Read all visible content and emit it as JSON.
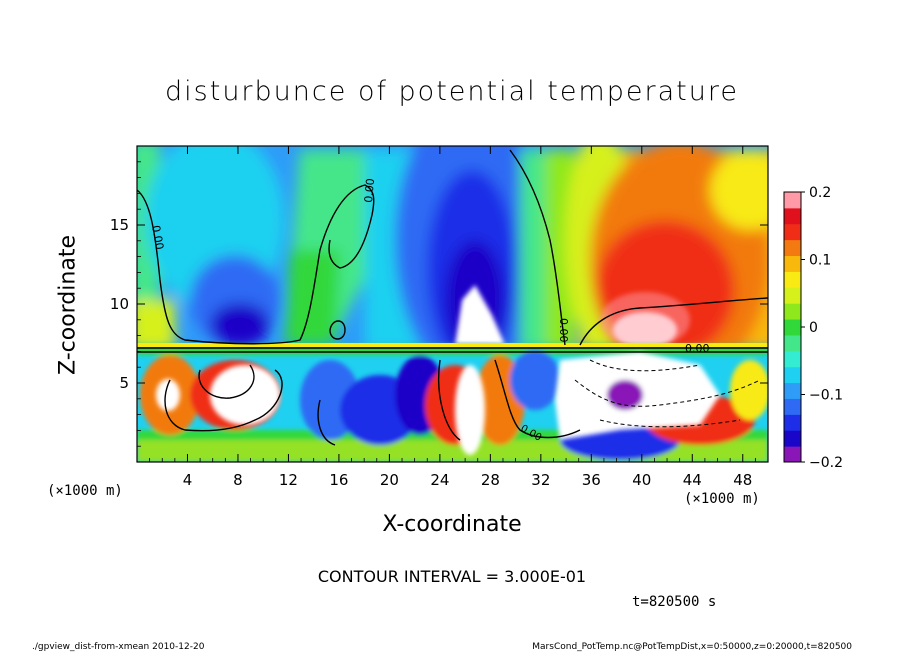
{
  "chart_data": {
    "type": "heatmap",
    "title": "disturbunce of potential temperature",
    "xlabel": "X-coordinate",
    "ylabel": "Z-coordinate",
    "x_unit": "(×1000 m)",
    "y_unit": "(×1000 m)",
    "xlim": [
      0,
      50
    ],
    "ylim": [
      0,
      20
    ],
    "x_ticks": [
      4,
      8,
      12,
      16,
      20,
      24,
      28,
      32,
      36,
      40,
      44,
      48
    ],
    "y_ticks": [
      5,
      10,
      15
    ],
    "colorbar": {
      "range": [
        -0.2,
        0.2
      ],
      "ticks": [
        0.2,
        0.1,
        0,
        -0.1,
        -0.2
      ],
      "tick_labels": [
        "0.2",
        "0.1",
        "0",
        "−0.1",
        "−0.2"
      ],
      "colors": [
        "#8a16b8",
        "#1a06c8",
        "#1e2ee8",
        "#2f6af4",
        "#2f9cf8",
        "#1fd0f0",
        "#33ecd2",
        "#44e68a",
        "#30d83a",
        "#8ee81c",
        "#d6f01c",
        "#f8ea12",
        "#f8b80c",
        "#f27a10",
        "#f02e18",
        "#e0101c",
        "#ff9aa6"
      ]
    },
    "contour_labels": [
      "0.00",
      "0.00",
      "0.00",
      "0.00",
      "0.00"
    ],
    "contour_interval": "CONTOUR INTERVAL = 3.000E-01",
    "time": "t=820500 s"
  },
  "footer": {
    "left": "./gpview_dist-from-xmean   2010-12-20",
    "right": "MarsCond_PotTemp.nc@PotTempDist,x=0:50000,z=0:20000,t=820500"
  }
}
